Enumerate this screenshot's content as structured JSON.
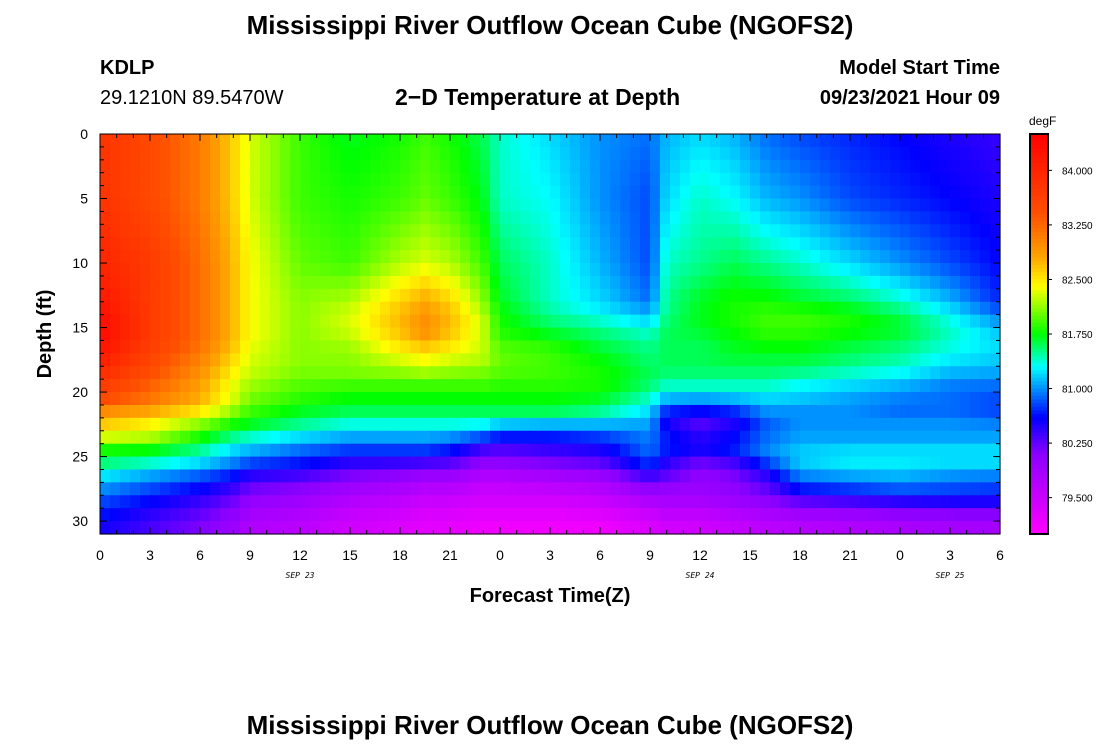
{
  "header": {
    "title": "Mississippi River Outflow Ocean Cube (NGOFS2)",
    "station_id": "KDLP",
    "coordinates": "29.1210N  89.5470W",
    "subtitle": "2−D Temperature at Depth",
    "model_start_label": "Model Start Time",
    "model_start_value": "09/23/2021 Hour 09"
  },
  "footer": {
    "title": "Mississippi River Outflow Ocean Cube (NGOFS2)"
  },
  "chart_data": {
    "type": "heatmap",
    "xlabel": "Forecast Time(Z)",
    "ylabel": "Depth (ft)",
    "x_unit": "forecast hours",
    "xlim": [
      0,
      54
    ],
    "ylim": [
      31,
      0
    ],
    "y_inverted": true,
    "x_ticks": [
      0,
      3,
      6,
      9,
      12,
      15,
      18,
      21,
      24,
      27,
      30,
      33,
      36,
      39,
      42,
      45,
      48,
      51,
      54
    ],
    "x_tick_labels": [
      "0",
      "3",
      "6",
      "9",
      "12",
      "15",
      "18",
      "21",
      "0",
      "3",
      "6",
      "9",
      "12",
      "15",
      "18",
      "21",
      "0",
      "3",
      "6"
    ],
    "date_labels": [
      {
        "x": 12,
        "label": "SEP 23"
      },
      {
        "x": 36,
        "label": "SEP 24"
      },
      {
        "x": 51,
        "label": "SEP 25"
      }
    ],
    "y_ticks": [
      0,
      5,
      10,
      15,
      20,
      25,
      30
    ],
    "y_tick_labels": [
      "0",
      "5",
      "10",
      "15",
      "20",
      "25",
      "30"
    ],
    "colorbar": {
      "unit": "degF",
      "min": 79.0,
      "max": 84.5,
      "tick_values": [
        84.0,
        83.25,
        82.5,
        81.75,
        81.0,
        80.25,
        79.5
      ],
      "tick_labels": [
        "84.000",
        "83.250",
        "82.500",
        "81.750",
        "81.000",
        "80.250",
        "79.500"
      ],
      "color_stops": [
        {
          "v": 79.0,
          "c": "#ff00ff"
        },
        {
          "v": 80.1,
          "c": "#8a00ff"
        },
        {
          "v": 80.6,
          "c": "#0000ff"
        },
        {
          "v": 81.3,
          "c": "#00ffff"
        },
        {
          "v": 81.75,
          "c": "#00ff00"
        },
        {
          "v": 82.4,
          "c": "#ffff00"
        },
        {
          "v": 82.8,
          "c": "#ffa500"
        },
        {
          "v": 83.4,
          "c": "#ff5000"
        },
        {
          "v": 84.5,
          "c": "#ff0000"
        }
      ]
    },
    "times": [
      0,
      3,
      6,
      8,
      9,
      12,
      15,
      18,
      19.5,
      21,
      23,
      24,
      27,
      30,
      33,
      34,
      36,
      38,
      40,
      42,
      45,
      48,
      51,
      54
    ],
    "depths": [
      0,
      5,
      10,
      13,
      14,
      15,
      16,
      17,
      18,
      19,
      20,
      21,
      21.5,
      22,
      23,
      24,
      25,
      26,
      27,
      28,
      29,
      30,
      31
    ],
    "temperatures_degF": [
      [
        83.8,
        83.5,
        83.1,
        82.6,
        82.3,
        81.9,
        81.7,
        81.8,
        81.9,
        81.8,
        81.6,
        81.4,
        81.2,
        81.0,
        80.9,
        81.1,
        81.2,
        81.1,
        80.9,
        80.8,
        80.7,
        80.6,
        80.5,
        80.4
      ],
      [
        83.8,
        83.5,
        83.1,
        82.6,
        82.3,
        81.9,
        81.8,
        81.9,
        82.0,
        81.9,
        81.7,
        81.4,
        81.3,
        81.0,
        80.8,
        81.2,
        81.4,
        81.3,
        81.1,
        81.0,
        80.8,
        80.7,
        80.6,
        80.5
      ],
      [
        84.0,
        83.7,
        83.2,
        82.7,
        82.4,
        82.0,
        81.9,
        82.2,
        82.3,
        82.2,
        81.9,
        81.6,
        81.4,
        81.1,
        80.8,
        81.4,
        81.5,
        81.6,
        81.5,
        81.4,
        81.2,
        81.0,
        80.8,
        80.6
      ],
      [
        84.2,
        83.7,
        83.2,
        82.7,
        82.4,
        82.1,
        82.2,
        82.6,
        82.8,
        82.6,
        82.1,
        81.7,
        81.4,
        81.2,
        80.9,
        81.5,
        81.7,
        81.8,
        81.8,
        81.7,
        81.6,
        81.4,
        81.1,
        80.7
      ],
      [
        84.3,
        83.7,
        83.2,
        82.7,
        82.4,
        82.1,
        82.3,
        82.7,
        82.9,
        82.7,
        82.2,
        81.8,
        81.5,
        81.3,
        81.1,
        81.5,
        81.7,
        81.8,
        81.9,
        81.9,
        81.8,
        81.6,
        81.3,
        80.9
      ],
      [
        84.4,
        83.7,
        83.2,
        82.7,
        82.4,
        82.1,
        82.3,
        82.7,
        83.0,
        82.7,
        82.3,
        81.8,
        81.6,
        81.5,
        81.3,
        81.6,
        81.7,
        81.8,
        81.9,
        81.9,
        81.8,
        81.7,
        81.4,
        81.1
      ],
      [
        84.3,
        83.7,
        83.2,
        82.7,
        82.4,
        82.1,
        82.2,
        82.6,
        82.8,
        82.6,
        82.2,
        81.9,
        81.8,
        81.6,
        81.5,
        81.6,
        81.6,
        81.7,
        81.8,
        81.8,
        81.7,
        81.6,
        81.4,
        81.2
      ],
      [
        84.2,
        83.6,
        83.1,
        82.6,
        82.3,
        82.1,
        82.1,
        82.4,
        82.5,
        82.4,
        82.3,
        82.0,
        81.9,
        81.7,
        81.5,
        81.6,
        81.6,
        81.7,
        81.7,
        81.7,
        81.6,
        81.5,
        81.3,
        81.2
      ],
      [
        84.0,
        83.5,
        83.0,
        82.5,
        82.3,
        82.1,
        82.1,
        82.2,
        82.3,
        82.2,
        82.1,
        82.0,
        81.9,
        81.8,
        81.6,
        81.6,
        81.6,
        81.6,
        81.6,
        81.6,
        81.5,
        81.4,
        81.2,
        81.1
      ],
      [
        83.8,
        83.4,
        82.9,
        82.4,
        82.2,
        82.0,
        82.0,
        82.0,
        82.0,
        82.0,
        82.0,
        81.9,
        81.9,
        81.8,
        81.6,
        81.5,
        81.5,
        81.5,
        81.5,
        81.4,
        81.3,
        81.2,
        81.0,
        81.0
      ],
      [
        83.6,
        83.2,
        82.8,
        82.3,
        82.1,
        81.9,
        81.8,
        81.8,
        81.8,
        81.8,
        81.8,
        81.8,
        81.8,
        81.8,
        81.5,
        81.3,
        81.3,
        81.3,
        81.3,
        81.2,
        81.1,
        81.0,
        80.9,
        80.8
      ],
      [
        83.4,
        83.1,
        82.7,
        82.3,
        82.0,
        81.8,
        81.7,
        81.7,
        81.7,
        81.7,
        81.7,
        81.7,
        81.7,
        81.6,
        81.3,
        80.9,
        80.8,
        80.9,
        81.1,
        81.1,
        81.0,
        80.9,
        80.9,
        80.8
      ],
      [
        83.0,
        82.8,
        82.5,
        82.1,
        81.9,
        81.7,
        81.6,
        81.6,
        81.6,
        81.6,
        81.6,
        81.6,
        81.6,
        81.5,
        81.2,
        80.7,
        80.6,
        80.7,
        81.0,
        81.0,
        81.0,
        80.9,
        80.9,
        80.8
      ],
      [
        82.6,
        82.4,
        82.2,
        81.9,
        81.8,
        81.6,
        81.5,
        81.5,
        81.5,
        81.5,
        81.5,
        81.4,
        81.4,
        81.3,
        81.1,
        80.6,
        80.4,
        80.6,
        80.9,
        81.0,
        81.0,
        81.0,
        81.0,
        80.9
      ],
      [
        82.7,
        82.5,
        82.0,
        81.7,
        81.6,
        81.4,
        81.2,
        81.2,
        81.2,
        81.2,
        81.1,
        80.9,
        80.8,
        80.9,
        81.0,
        80.5,
        80.2,
        80.4,
        80.8,
        81.0,
        81.0,
        81.0,
        81.0,
        81.0
      ],
      [
        81.9,
        81.9,
        81.6,
        81.3,
        81.2,
        81.0,
        80.9,
        80.9,
        80.9,
        80.8,
        80.5,
        80.4,
        80.5,
        80.6,
        80.9,
        80.8,
        80.7,
        80.8,
        81.0,
        81.1,
        81.1,
        81.1,
        81.1,
        81.1
      ],
      [
        81.7,
        81.6,
        81.4,
        81.1,
        81.0,
        80.8,
        80.6,
        80.6,
        80.6,
        80.5,
        80.2,
        80.2,
        80.3,
        80.4,
        80.9,
        80.5,
        80.3,
        80.5,
        80.9,
        81.2,
        81.3,
        81.3,
        81.3,
        81.3
      ],
      [
        81.4,
        81.2,
        81.0,
        80.8,
        80.6,
        80.5,
        80.3,
        80.2,
        80.1,
        80.1,
        79.9,
        79.9,
        80.0,
        80.1,
        80.6,
        80.4,
        80.1,
        80.2,
        80.6,
        81.1,
        81.2,
        81.2,
        81.1,
        81.1
      ],
      [
        81.1,
        80.9,
        80.7,
        80.5,
        80.3,
        80.2,
        80.0,
        79.9,
        79.8,
        79.8,
        79.6,
        79.6,
        79.7,
        79.8,
        80.2,
        80.1,
        80.0,
        80.1,
        80.3,
        80.8,
        80.9,
        81.0,
        80.9,
        80.8
      ],
      [
        80.9,
        80.7,
        80.5,
        80.3,
        80.1,
        80.0,
        79.8,
        79.7,
        79.6,
        79.6,
        79.5,
        79.5,
        79.5,
        79.6,
        79.9,
        79.9,
        79.9,
        80.0,
        80.2,
        80.5,
        80.6,
        80.7,
        80.7,
        80.7
      ],
      [
        80.7,
        80.5,
        80.3,
        80.1,
        79.9,
        79.8,
        79.6,
        79.5,
        79.4,
        79.4,
        79.3,
        79.3,
        79.3,
        79.4,
        79.6,
        79.7,
        79.7,
        79.8,
        79.9,
        80.0,
        80.1,
        80.2,
        80.3,
        80.3
      ],
      [
        80.6,
        80.4,
        80.2,
        80.0,
        79.8,
        79.7,
        79.5,
        79.4,
        79.3,
        79.3,
        79.2,
        79.2,
        79.2,
        79.2,
        79.4,
        79.5,
        79.5,
        79.6,
        79.7,
        79.8,
        79.8,
        79.9,
        79.9,
        79.9
      ],
      [
        80.5,
        80.3,
        80.1,
        79.9,
        79.7,
        79.6,
        79.4,
        79.3,
        79.2,
        79.2,
        79.1,
        79.1,
        79.1,
        79.1,
        79.3,
        79.4,
        79.4,
        79.5,
        79.6,
        79.6,
        79.7,
        79.7,
        79.8,
        79.8
      ]
    ],
    "grid": false
  }
}
